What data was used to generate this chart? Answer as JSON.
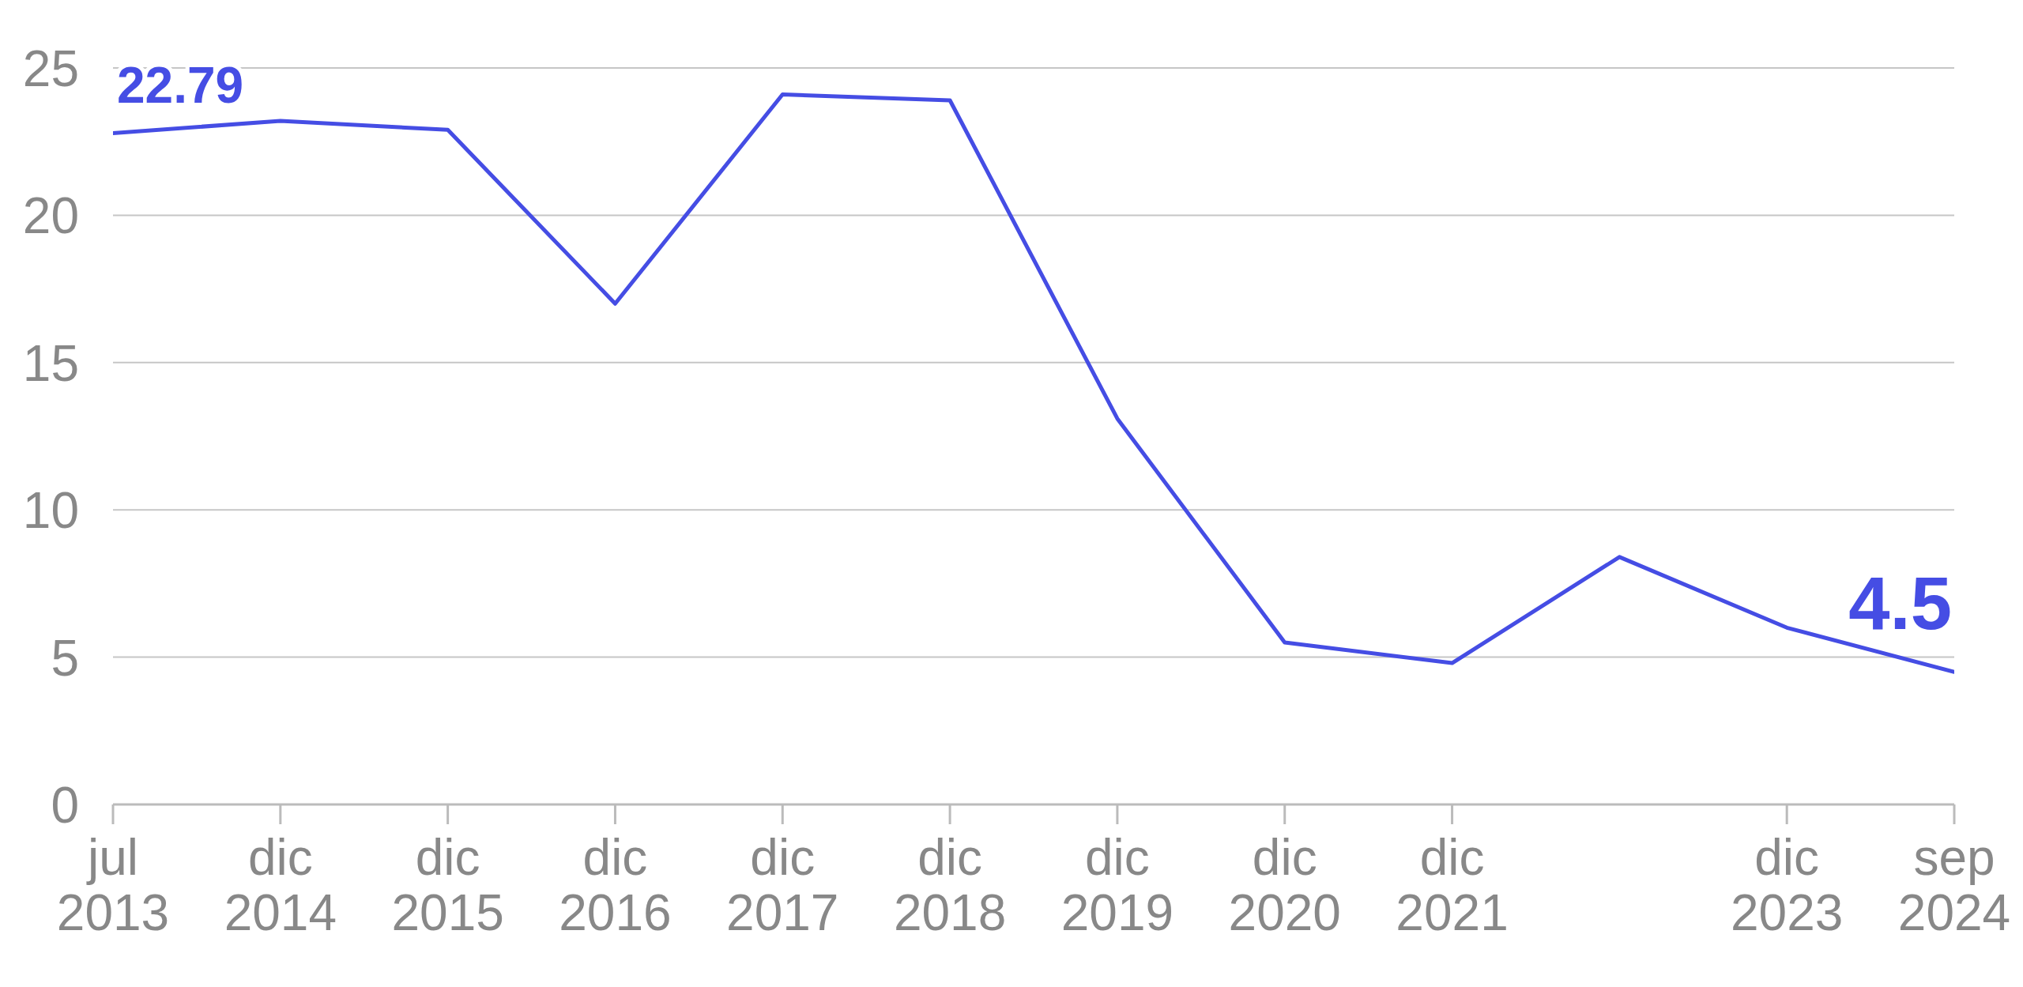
{
  "chart_data": {
    "type": "line",
    "categories": [
      "jul 2013",
      "dic 2014",
      "dic 2015",
      "dic 2016",
      "dic 2017",
      "dic 2018",
      "dic 2019",
      "dic 2020",
      "dic 2021",
      null,
      "dic 2023",
      "sep 2024"
    ],
    "values": [
      22.79,
      23.2,
      22.9,
      17.0,
      24.1,
      23.9,
      13.1,
      5.5,
      4.8,
      8.4,
      6.0,
      4.5
    ],
    "color": "#454de4",
    "value_labels": [
      "22.79",
      null,
      null,
      null,
      null,
      null,
      null,
      null,
      null,
      null,
      null,
      "4.5"
    ],
    "ylim": [
      0,
      25
    ],
    "yticks": [
      0,
      5,
      10,
      15,
      20,
      25
    ],
    "grid": "y"
  }
}
